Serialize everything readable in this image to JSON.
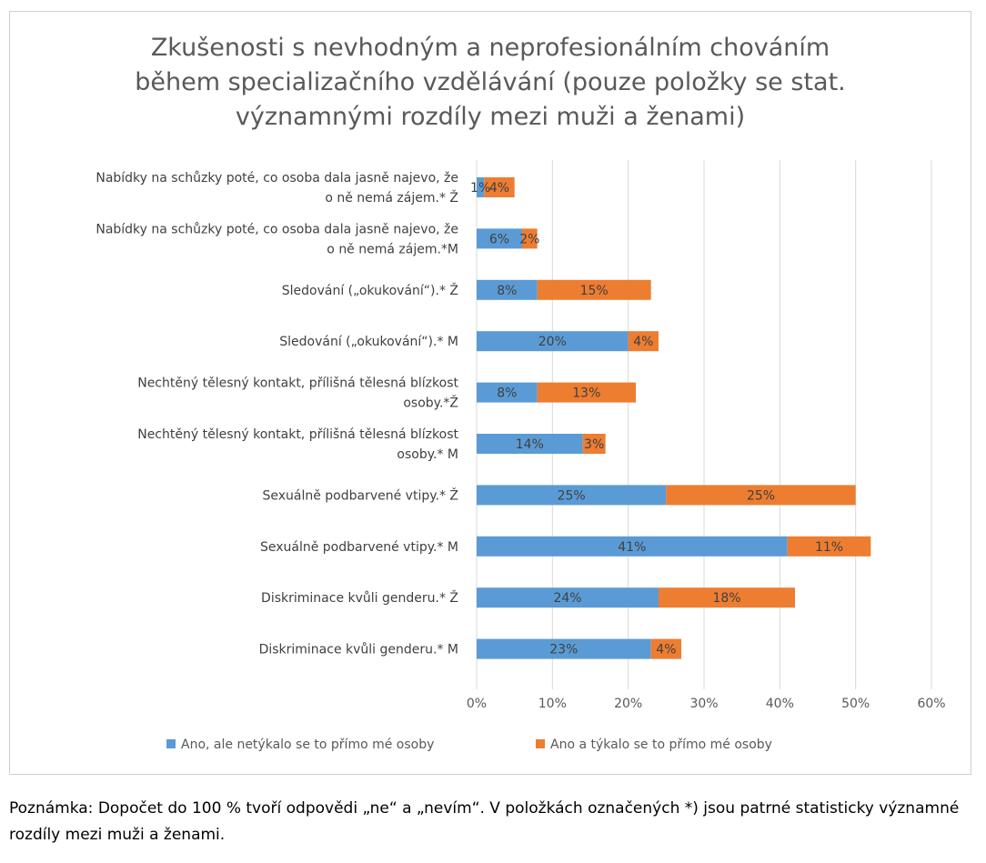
{
  "colors": {
    "series1": "#5B9BD5",
    "series2": "#ED7D31",
    "grid": "#D9D9D9",
    "title": "#595959"
  },
  "chart_data": {
    "type": "bar",
    "orientation": "horizontal",
    "stacked": true,
    "title_lines": [
      "Zkušenosti s nevhodným a neprofesionálním chováním",
      "během specializačního vzdělávání (pouze položky se stat.",
      "významnými rozdíly mezi muži a ženami)"
    ],
    "categories": [
      [
        "Nabídky na schůzky poté, co osoba dala jasně najevo, že",
        "o ně nemá zájem.* Ž"
      ],
      [
        "Nabídky na schůzky poté, co osoba dala jasně najevo, že",
        "o ně nemá zájem.*M"
      ],
      [
        "Sledování („okukování“).* Ž"
      ],
      [
        "Sledování („okukování“).* M"
      ],
      [
        "Nechtěný tělesný kontakt, příliš­ná tělesná blízkost",
        "osoby.*Ž"
      ],
      [
        "Nechtěný tělesný kontakt, příliš­ná tělesná blízkost",
        "osoby.* M"
      ],
      [
        "Sexuálně podbarvené vtipy.* Ž"
      ],
      [
        "Sexuálně podbarvené vtipy.* M"
      ],
      [
        "Diskriminace kvůli genderu.* Ž"
      ],
      [
        "Diskriminace kvůli genderu.* M"
      ]
    ],
    "series": [
      {
        "name": "Ano, ale netýkalo se to přímo mé osoby",
        "values": [
          1,
          6,
          8,
          20,
          8,
          14,
          25,
          41,
          24,
          23
        ],
        "labels": [
          "1%",
          "6%",
          "8%",
          "20%",
          "8%",
          "14%",
          "25%",
          "41%",
          "24%",
          "23%"
        ]
      },
      {
        "name": "Ano a týkalo se to přímo mé osoby",
        "values": [
          4,
          2,
          15,
          4,
          13,
          3,
          25,
          11,
          18,
          4
        ],
        "labels": [
          "4%",
          "2%",
          "15%",
          "4%",
          "13%",
          "3%",
          "25%",
          "11%",
          "18%",
          "4%"
        ]
      }
    ],
    "xlim": [
      0,
      60
    ],
    "xticks": [
      "0%",
      "10%",
      "20%",
      "30%",
      "40%",
      "50%",
      "60%"
    ],
    "xtick_values": [
      0,
      10,
      20,
      30,
      40,
      50,
      60
    ],
    "grid": true,
    "legend_position": "bottom"
  },
  "note": "Poznámka: Dopočet do 100 % tvoří odpovědi „ne“ a „nevím“. V položkách označených *) jsou patrné statisticky významné rozdíly mezi muži a ženami."
}
